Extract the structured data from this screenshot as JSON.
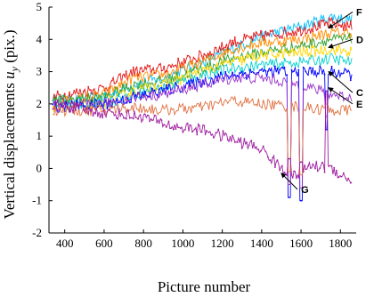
{
  "chart_data": {
    "type": "line",
    "xlabel": "Picture number",
    "ylabel_main": "Vertical displacements ",
    "ylabel_var": "u",
    "ylabel_sub": "y",
    "ylabel_tail": " (pix.)",
    "xlim": [
      320,
      1880
    ],
    "ylim": [
      -2,
      5
    ],
    "xticks": [
      "400",
      "600",
      "800",
      "1000",
      "1200",
      "1400",
      "1600",
      "1800"
    ],
    "yticks": [
      "-2",
      "-1",
      "0",
      "1",
      "2",
      "3",
      "4",
      "5"
    ],
    "grid": false,
    "series": [
      {
        "color": "#00bfff",
        "x": [
          340,
          600,
          750,
          900,
          1100,
          1250,
          1400,
          1600,
          1750,
          1860
        ],
        "y": [
          2.1,
          2.2,
          2.6,
          2.8,
          3.3,
          3.7,
          4.1,
          4.4,
          4.7,
          4.6
        ]
      },
      {
        "color": "#e61919",
        "markers": true,
        "x": [
          340,
          600,
          750,
          900,
          1100,
          1250,
          1400,
          1600,
          1750,
          1860
        ],
        "y": [
          2.2,
          2.5,
          3.0,
          3.1,
          3.5,
          3.9,
          4.1,
          4.3,
          4.5,
          4.4
        ]
      },
      {
        "color": "#ff8c00",
        "x": [
          340,
          600,
          750,
          900,
          1100,
          1250,
          1400,
          1600,
          1750,
          1860
        ],
        "y": [
          2.0,
          2.3,
          2.8,
          2.9,
          3.3,
          3.7,
          3.9,
          4.0,
          4.2,
          4.2
        ]
      },
      {
        "color": "#2ca02c",
        "x": [
          340,
          600,
          750,
          900,
          1100,
          1250,
          1400,
          1600,
          1750,
          1860
        ],
        "y": [
          2.1,
          2.2,
          2.6,
          2.7,
          3.1,
          3.4,
          3.6,
          3.8,
          4.0,
          4.0
        ]
      },
      {
        "color": "#ffd700",
        "markers": true,
        "x": [
          340,
          600,
          750,
          900,
          1100,
          1250,
          1400,
          1600,
          1750,
          1860
        ],
        "y": [
          1.9,
          2.0,
          2.4,
          2.6,
          3.0,
          3.3,
          3.5,
          3.6,
          3.7,
          3.6
        ]
      },
      {
        "color": "#00d0d0",
        "x": [
          340,
          600,
          750,
          900,
          1100,
          1250,
          1400,
          1600,
          1750,
          1860
        ],
        "y": [
          2.0,
          2.0,
          2.3,
          2.5,
          2.9,
          3.1,
          3.2,
          3.3,
          3.4,
          3.3
        ]
      },
      {
        "color": "#0000ff",
        "markers": true,
        "x": [
          340,
          600,
          750,
          900,
          1100,
          1250,
          1400,
          1600,
          1750,
          1860
        ],
        "y": [
          1.9,
          2.0,
          2.2,
          2.4,
          2.7,
          2.9,
          3.0,
          3.0,
          3.0,
          2.9
        ]
      },
      {
        "color": "#9932cc",
        "x": [
          340,
          600,
          750,
          900,
          1100,
          1250,
          1400,
          1600,
          1750,
          1860
        ],
        "y": [
          1.9,
          2.0,
          2.2,
          2.3,
          2.6,
          2.8,
          2.8,
          2.6,
          2.3,
          2.2
        ]
      },
      {
        "color": "#e07040",
        "x": [
          340,
          600,
          750,
          900,
          1100,
          1250,
          1400,
          1600,
          1750,
          1860
        ],
        "y": [
          1.8,
          1.8,
          1.9,
          1.8,
          1.9,
          2.1,
          2.0,
          1.9,
          1.8,
          1.8
        ]
      },
      {
        "color": "#a020a0",
        "markers": true,
        "x": [
          340,
          500,
          650,
          800,
          950,
          1100,
          1250,
          1400,
          1550,
          1650,
          1750,
          1860
        ],
        "y": [
          2.0,
          1.8,
          1.7,
          1.6,
          1.3,
          1.2,
          0.9,
          0.6,
          -0.3,
          0.1,
          0.0,
          -0.4
        ]
      }
    ],
    "dips": [
      {
        "x": 1540,
        "y": -0.9
      },
      {
        "x": 1600,
        "y": -1.0
      },
      {
        "x": 1730,
        "y": 1.2
      }
    ],
    "annotations": [
      {
        "label": "F",
        "x": 1880,
        "y": 4.85,
        "ax": 1740,
        "ay": 4.35
      },
      {
        "label": "D",
        "x": 1880,
        "y": 4.0,
        "ax": 1740,
        "ay": 3.75
      },
      {
        "label": "C",
        "x": 1880,
        "y": 2.35,
        "ax": 1740,
        "ay": 3.0
      },
      {
        "label": "E",
        "x": 1880,
        "y": 2.0,
        "ax": 1740,
        "ay": 2.5
      },
      {
        "label": "G",
        "x": 1600,
        "y": -0.65,
        "ax": 1500,
        "ay": -0.15
      }
    ]
  }
}
